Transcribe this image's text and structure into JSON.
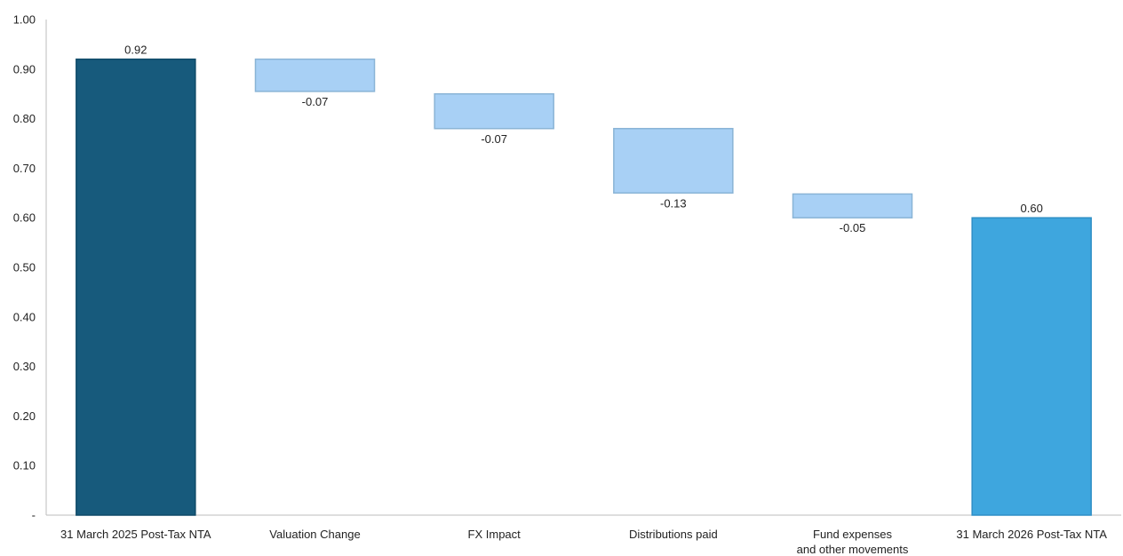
{
  "chart_data": {
    "type": "bar",
    "subtype": "waterfall",
    "title": "",
    "xlabel": "",
    "ylabel": "",
    "ylim": [
      0,
      1.0
    ],
    "yticks": [
      "-",
      "0.10",
      "0.20",
      "0.30",
      "0.40",
      "0.50",
      "0.60",
      "0.70",
      "0.80",
      "0.90",
      "1.00"
    ],
    "categories": [
      [
        "31 March 2025 Post-Tax NTA"
      ],
      [
        "Valuation Change"
      ],
      [
        "FX Impact"
      ],
      [
        "Distributions paid"
      ],
      [
        "Fund expenses",
        "and other movements"
      ],
      [
        "31 March 2026 Post-Tax NTA"
      ]
    ],
    "bars": [
      {
        "kind": "total",
        "start": 0,
        "end": 0.92,
        "label": "0.92"
      },
      {
        "kind": "delta",
        "start": 0.92,
        "end": 0.855,
        "label": "-0.07"
      },
      {
        "kind": "delta",
        "start": 0.85,
        "end": 0.78,
        "label": "-0.07"
      },
      {
        "kind": "delta",
        "start": 0.78,
        "end": 0.65,
        "label": "-0.13"
      },
      {
        "kind": "delta",
        "start": 0.648,
        "end": 0.6,
        "label": "-0.05"
      },
      {
        "kind": "total",
        "start": 0,
        "end": 0.6,
        "label": "0.60"
      }
    ],
    "grid": false,
    "legend": "none",
    "colors": {
      "start_total": "#175a7c",
      "start_total_edge": "#0f4a68",
      "delta": "#a8d0f5",
      "delta_edge": "#8ab4d6",
      "end_total": "#3ea6de",
      "end_total_edge": "#2f8fc6",
      "axis": "#bdbdbd",
      "text": "#222222"
    }
  }
}
